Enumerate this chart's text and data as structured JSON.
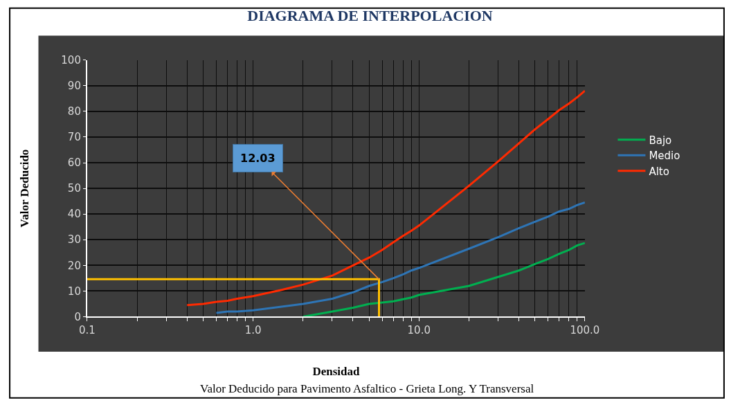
{
  "chart_data": {
    "type": "line",
    "title": "DIAGRAMA DE INTERPOLACION",
    "xlabel": "Densidad",
    "ylabel": "Valor Deducido",
    "annotations": [
      {
        "text": "12.03",
        "x": 5.74,
        "y": 14.6
      },
      "Valor Deducido para Pavimento Asfaltico - Grieta Long. Y Transversal"
    ],
    "series": [
      {
        "name": "Bajo",
        "color": "#00b050",
        "x": [
          2,
          3,
          4,
          5,
          6,
          7,
          8,
          9,
          10,
          20,
          30,
          40,
          50,
          60,
          70,
          80,
          90,
          100
        ],
        "values": [
          0,
          2,
          3.5,
          5,
          5.5,
          6,
          6.8,
          7.5,
          8.5,
          12,
          15.5,
          18,
          20.5,
          22.5,
          24.5,
          26,
          27.8,
          28.7
        ]
      },
      {
        "name": "Medio",
        "color": "#2e75b6",
        "x": [
          0.6,
          0.7,
          0.8,
          1,
          2,
          3,
          4,
          5,
          6,
          7,
          8,
          9,
          10,
          20,
          30,
          40,
          50,
          60,
          70,
          80,
          90,
          100
        ],
        "values": [
          1.5,
          2,
          2,
          2.5,
          5,
          7,
          9.5,
          12,
          13.5,
          15,
          16.5,
          18,
          19,
          26.5,
          31,
          34.5,
          37,
          39,
          41,
          42,
          43.5,
          44.5
        ]
      },
      {
        "name": "Alto",
        "color": "#ff2a00",
        "x": [
          0.4,
          0.5,
          0.6,
          0.7,
          0.8,
          1,
          1.5,
          2,
          3,
          4,
          5,
          6,
          7,
          8,
          9,
          10,
          20,
          30,
          40,
          50,
          60,
          70,
          80,
          90,
          100
        ],
        "values": [
          4.5,
          5,
          5.8,
          6.2,
          7,
          8,
          10.5,
          12.5,
          16,
          20,
          23,
          26,
          29,
          31.5,
          33.5,
          35.5,
          51,
          60.5,
          67.5,
          73,
          77,
          80.5,
          83,
          85.5,
          88
        ]
      },
      {
        "color": "#ffc000",
        "x": [
          0.1,
          5.74,
          5.74
        ],
        "values": [
          14.6,
          14.6,
          0
        ]
      }
    ],
    "log": "x",
    "xlim": [
      0.1,
      100
    ],
    "ylim": [
      0,
      100
    ],
    "xticks": [
      {
        "value": 0.1,
        "label": "0.1"
      },
      {
        "value": 0.2,
        "label": null
      },
      {
        "value": 0.3,
        "label": null
      },
      {
        "value": 0.4,
        "label": null
      },
      {
        "value": 0.5,
        "label": null
      },
      {
        "value": 0.6,
        "label": null
      },
      {
        "value": 0.7,
        "label": null
      },
      {
        "value": 0.8,
        "label": null
      },
      {
        "value": 0.9,
        "label": null
      },
      {
        "value": 1,
        "label": "1.0"
      },
      {
        "value": 2,
        "label": null
      },
      {
        "value": 3,
        "label": null
      },
      {
        "value": 4,
        "label": null
      },
      {
        "value": 5,
        "label": null
      },
      {
        "value": 6,
        "label": null
      },
      {
        "value": 7,
        "label": null
      },
      {
        "value": 8,
        "label": null
      },
      {
        "value": 9,
        "label": null
      },
      {
        "value": 10,
        "label": "10.0"
      },
      {
        "value": 20,
        "label": null
      },
      {
        "value": 30,
        "label": null
      },
      {
        "value": 40,
        "label": null
      },
      {
        "value": 50,
        "label": null
      },
      {
        "value": 60,
        "label": null
      },
      {
        "value": 70,
        "label": null
      },
      {
        "value": 80,
        "label": null
      },
      {
        "value": 90,
        "label": null
      },
      {
        "value": 100,
        "label": "100.0"
      }
    ],
    "yticks": [
      0,
      10,
      20,
      30,
      40,
      50,
      60,
      70,
      80,
      90,
      100
    ],
    "grid": true,
    "legend": "right",
    "marker": "none",
    "line_style": "solid"
  }
}
